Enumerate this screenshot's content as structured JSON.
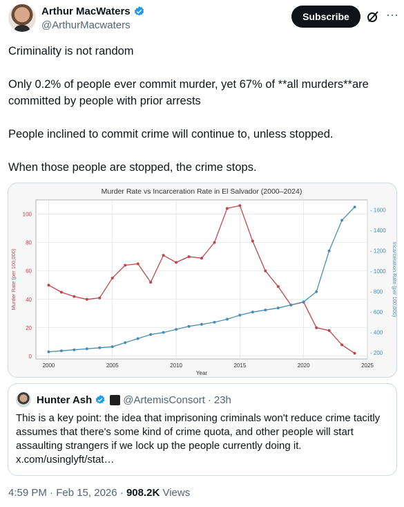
{
  "author": {
    "name": "Arthur MacWaters",
    "handle": "@ArthurMacwaters"
  },
  "actions": {
    "subscribe": "Subscribe"
  },
  "tweet": {
    "paragraphs": [
      "Criminality is not random",
      "Only 0.2% of people ever commit murder, yet 67% of **all murders**are committed by people with prior arrests",
      "People inclined to commit crime will continue to, unless stopped.",
      "When those people are stopped, the crime stops."
    ]
  },
  "quote": {
    "name": "Hunter Ash",
    "handle": "@ArtemisConsort",
    "sep": "·",
    "time": "23h",
    "text": "This is a key point: the idea that imprisoning criminals won't reduce crime tacitly assumes that there's some kind of crime quota, and other people will start assaulting strangers if we lock up the people currently doing it. x.com/usinglyft/stat…"
  },
  "meta": {
    "time": "4:59 PM · Feb 15, 2026 · ",
    "views": "908.2K",
    "views_label": " Views"
  },
  "colors": {
    "murder": "#c0454b",
    "incarceration": "#4a8db3"
  },
  "chart_data": {
    "type": "line",
    "title": "Murder Rate vs Incarceration Rate in El Salvador (2000–2024)",
    "xlabel": "Year",
    "ylabel_left": "Murder Rate (per 100,000)",
    "ylabel_right": "Incarceration Rate (per 100,000)",
    "xlim": [
      1999,
      2025
    ],
    "ylim_left": [
      -2,
      110
    ],
    "ylim_right": [
      140,
      1700
    ],
    "x_ticks": [
      2000,
      2005,
      2010,
      2015,
      2020,
      2025
    ],
    "y_ticks_left": [
      0,
      20,
      40,
      60,
      80,
      100
    ],
    "y_ticks_right": [
      200,
      400,
      600,
      800,
      1000,
      1200,
      1400,
      1600
    ],
    "grid": true,
    "x": [
      2000,
      2001,
      2002,
      2003,
      2004,
      2005,
      2006,
      2007,
      2008,
      2009,
      2010,
      2011,
      2012,
      2013,
      2014,
      2015,
      2016,
      2017,
      2018,
      2019,
      2020,
      2021,
      2022,
      2023,
      2024
    ],
    "series": [
      {
        "axis": "left",
        "values": [
          50,
          45,
          42,
          40,
          41,
          55,
          64,
          65,
          52,
          71,
          66,
          70,
          69,
          80,
          104,
          106,
          81,
          60,
          49,
          36,
          38,
          20,
          18,
          8,
          2
        ]
      },
      {
        "axis": "right",
        "values": [
          210,
          220,
          230,
          240,
          250,
          260,
          300,
          340,
          380,
          400,
          430,
          460,
          480,
          500,
          530,
          570,
          600,
          620,
          640,
          670,
          700,
          800,
          1200,
          1500,
          1630
        ]
      }
    ]
  }
}
